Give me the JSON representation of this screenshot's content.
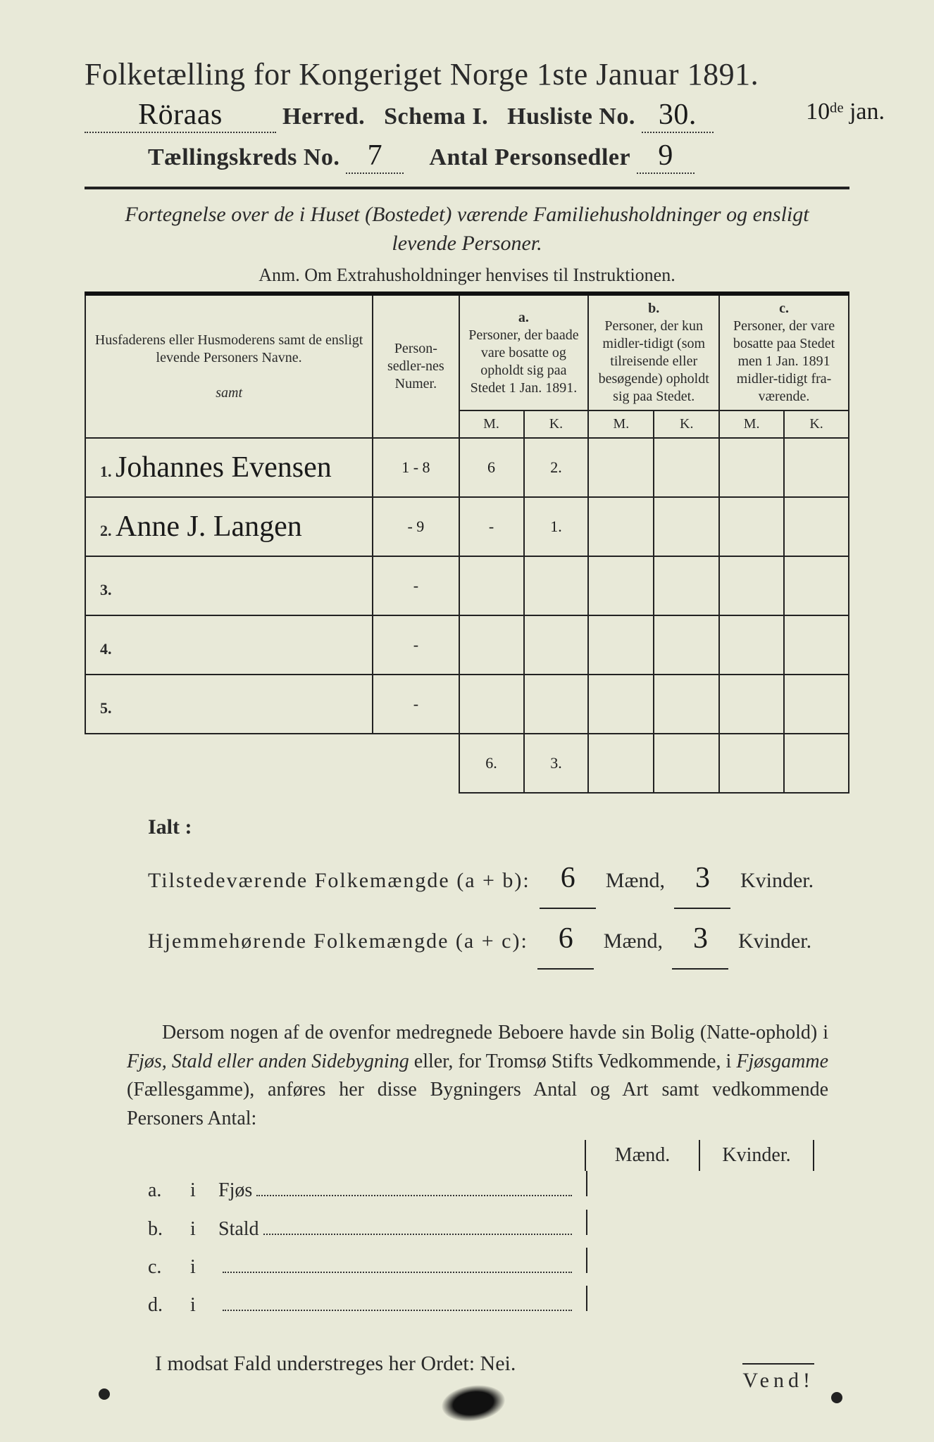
{
  "header": {
    "title_pre": "Folketælling for Kongeriget Norge 1ste Januar",
    "year": "1891.",
    "herred_hw": "Röraas",
    "herred_label": "Herred.",
    "schema": "Schema I.",
    "husliste_label": "Husliste No.",
    "husliste_no_hw": "30.",
    "margin_note_hw": "10ᵈᵉ jan.",
    "kreds_label": "Tællingskreds No.",
    "kreds_no_hw": "7",
    "antal_label": "Antal Personsedler",
    "antal_hw": "9"
  },
  "subhead": {
    "line1": "Fortegnelse over de i Huset (Bostedet) værende Familiehusholdninger og ensligt levende Personer.",
    "anm": "Anm.  Om Extrahusholdninger henvises til Instruktionen."
  },
  "table": {
    "col_name": "Husfaderens eller Husmoderens samt de ensligt levende Personers Navne.",
    "col_num": "Person-sedler-nes Numer.",
    "a_label": "a.",
    "a_text": "Personer, der baade vare bosatte og opholdt sig paa Stedet 1 Jan. 1891.",
    "b_label": "b.",
    "b_text": "Personer, der kun midler-tidigt (som tilreisende eller besøgende) opholdt sig paa Stedet.",
    "c_label": "c.",
    "c_text": "Personer, der vare bosatte paa Stedet men 1 Jan. 1891 midler-tidigt fra-værende.",
    "M": "M.",
    "K": "K.",
    "rows": [
      {
        "n": "1.",
        "name_hw": "Johannes Evensen",
        "num_hw": "1 - 8",
        "aM": "6",
        "aK": "2.",
        "bM": "",
        "bK": "",
        "cM": "",
        "cK": ""
      },
      {
        "n": "2.",
        "name_hw": "Anne J. Langen",
        "num_hw": "- 9",
        "aM": "-",
        "aK": "1.",
        "bM": "",
        "bK": "",
        "cM": "",
        "cK": ""
      },
      {
        "n": "3.",
        "name_hw": "",
        "num_hw": "-",
        "aM": "",
        "aK": "",
        "bM": "",
        "bK": "",
        "cM": "",
        "cK": ""
      },
      {
        "n": "4.",
        "name_hw": "",
        "num_hw": "-",
        "aM": "",
        "aK": "",
        "bM": "",
        "bK": "",
        "cM": "",
        "cK": ""
      },
      {
        "n": "5.",
        "name_hw": "",
        "num_hw": "-",
        "aM": "",
        "aK": "",
        "bM": "",
        "bK": "",
        "cM": "",
        "cK": ""
      }
    ],
    "col_totals": {
      "aM": "6.",
      "aK": "3."
    }
  },
  "totals": {
    "ialt": "Ialt :",
    "tilstede_label": "Tilstedeværende Folkemængde (a + b):",
    "hjemme_label": "Hjemmehørende Folkemængde (a + c):",
    "maend": "Mænd,",
    "kvinder": "Kvinder.",
    "t_m": "6",
    "t_k": "3",
    "h_m": "6",
    "h_k": "3"
  },
  "para": {
    "text_a": "Dersom nogen af de ovenfor medregnede Beboere havde sin Bolig (Natte-ophold) i ",
    "it1": "Fjøs, Stald eller anden Sidebygning",
    "text_b": " eller, for Tromsø Stifts Vedkommende, i ",
    "it2": "Fjøsgamme",
    "text_c": " (Fællesgamme), anføres her disse Bygningers Antal og Art samt vedkommende Personers Antal:"
  },
  "mk": {
    "m": "Mænd.",
    "k": "Kvinder."
  },
  "abcd": [
    {
      "lab": "a.",
      "i": "i",
      "txt": "Fjøs"
    },
    {
      "lab": "b.",
      "i": "i",
      "txt": "Stald"
    },
    {
      "lab": "c.",
      "i": "i",
      "txt": ""
    },
    {
      "lab": "d.",
      "i": "i",
      "txt": ""
    }
  ],
  "nei": "I modsat Fald understreges her Ordet: Nei.",
  "vend": "Vend!",
  "style": {
    "bg": "#e8e9d8",
    "ink": "#222222",
    "hw_font": "Brush Script MT",
    "body_font": "Times New Roman",
    "title_fontsize": 44,
    "line_fontsize": 34,
    "table_fontsize": 22,
    "rule_thick": 4,
    "rule_thin": 2
  }
}
